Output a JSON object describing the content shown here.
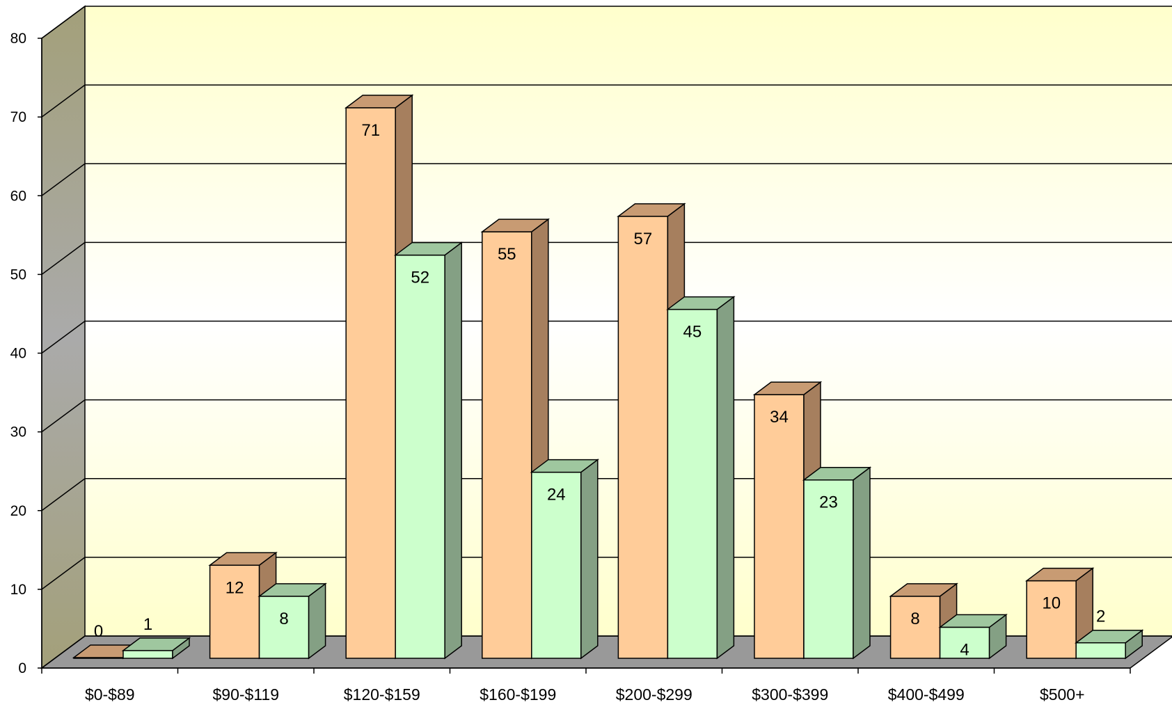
{
  "chart_data": {
    "type": "bar",
    "title": "",
    "xlabel": "",
    "ylabel": "",
    "ylim": [
      0,
      80
    ],
    "yticks": [
      0,
      10,
      20,
      30,
      40,
      50,
      60,
      70,
      80
    ],
    "categories": [
      "$0-$89",
      "$90-$119",
      "$120-$159",
      "$160-$199",
      "$200-$299",
      "$300-$399",
      "$400-$499",
      "$500+"
    ],
    "series": [
      {
        "values": [
          0,
          12,
          71,
          55,
          57,
          34,
          8,
          10
        ],
        "color": "#FFCC99",
        "side_color": "#A67F5E",
        "top_color": "#C89B73"
      },
      {
        "values": [
          1,
          8,
          52,
          24,
          45,
          23,
          4,
          2
        ],
        "color": "#CCFFCC",
        "side_color": "#84A084",
        "top_color": "#9FC79F"
      }
    ],
    "grid": true,
    "legend": "none",
    "style": "3d-clustered-column"
  }
}
